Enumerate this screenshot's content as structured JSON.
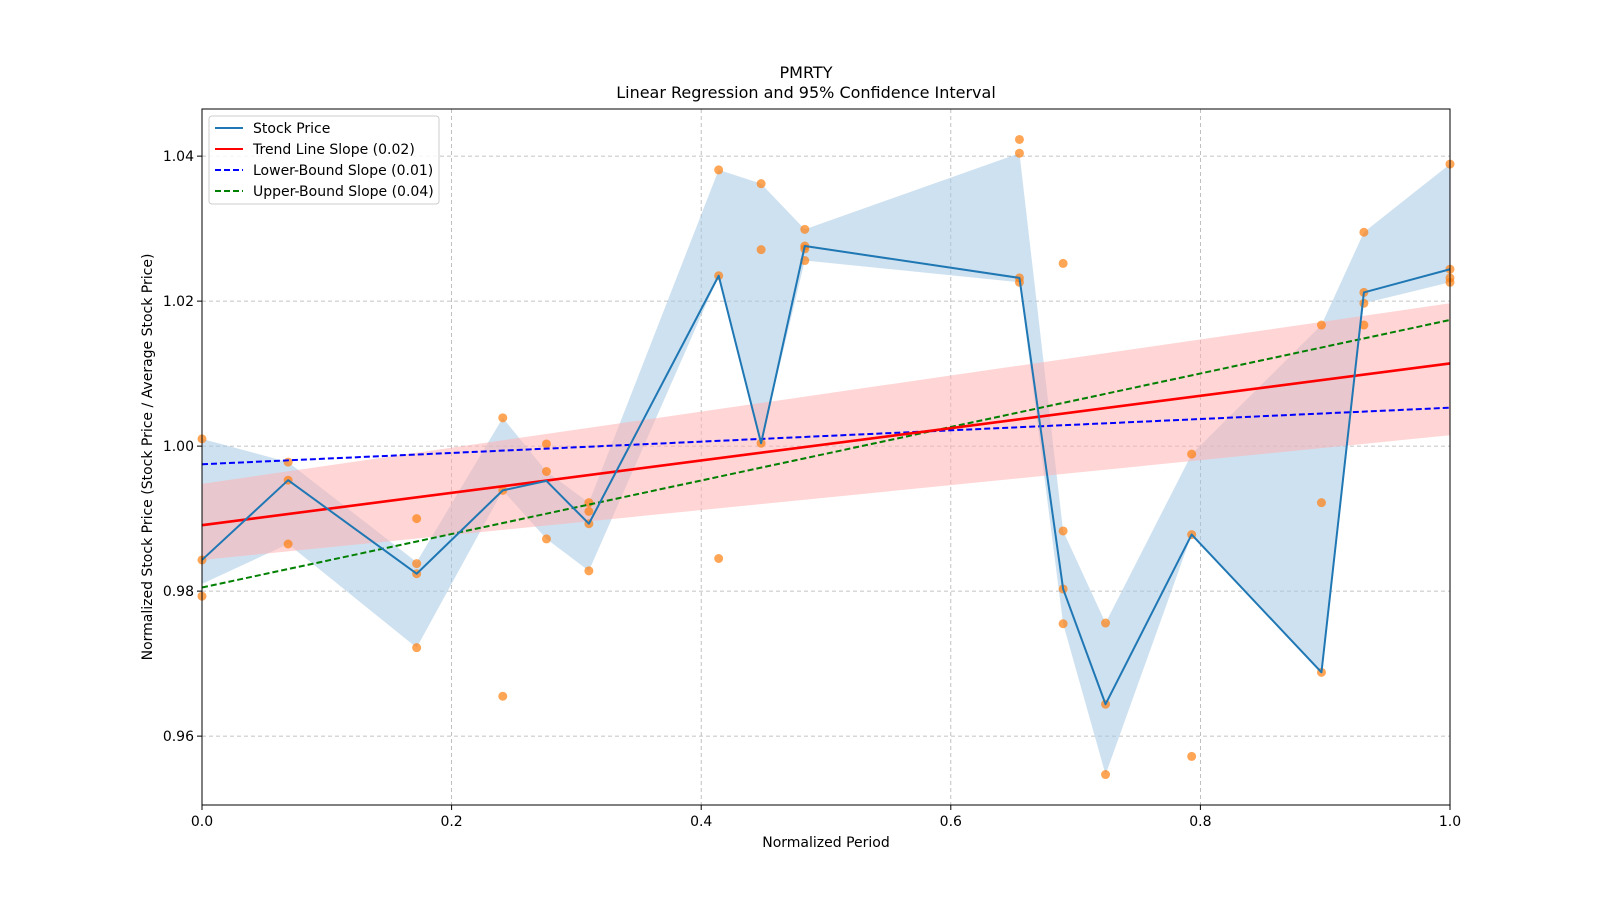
{
  "chart_data": {
    "type": "line",
    "title": "PMRTY",
    "subtitle": "Linear Regression and 95% Confidence Interval",
    "xlabel": "Normalized Period",
    "ylabel": "Normalized Stock Price (Stock Price / Average Stock Price)",
    "xlim": [
      0,
      1
    ],
    "ylim": [
      0.9505,
      1.0465
    ],
    "xticks": [
      0,
      0.2,
      0.4,
      0.6,
      0.8,
      1.0
    ],
    "xtick_labels": [
      "0.0",
      "0.2",
      "0.4",
      "0.6",
      "0.8",
      "1.0"
    ],
    "yticks": [
      0.96,
      0.98,
      1.0,
      1.02,
      1.04
    ],
    "ytick_labels": [
      "0.96",
      "0.98",
      "1.00",
      "1.02",
      "1.04"
    ],
    "grid": true,
    "legend_position": "top-left",
    "colors": {
      "stock": "#1f77b4",
      "stock_band": "#a6c9e3",
      "trend": "#ff0000",
      "trend_band": "#ffb3b3",
      "lower": "#0000ff",
      "upper": "#008000",
      "points": "#ff7f0e"
    },
    "stock_price": {
      "name": "Stock Price",
      "x": [
        0.0,
        0.069,
        0.172,
        0.241,
        0.276,
        0.31,
        0.414,
        0.448,
        0.483,
        0.655,
        0.69,
        0.724,
        0.793,
        0.897,
        0.931,
        1.0
      ],
      "y": [
        0.9843,
        0.9953,
        0.9824,
        0.9939,
        0.9952,
        0.9893,
        1.0235,
        1.0004,
        1.0276,
        1.0232,
        0.9803,
        0.9644,
        0.9878,
        0.9688,
        1.0212,
        1.0244
      ],
      "band_lower": [
        0.981,
        0.9865,
        0.9722,
        0.9939,
        0.9872,
        0.9828,
        1.0235,
        1.0004,
        1.0256,
        1.0226,
        0.9755,
        0.9547,
        0.9878,
        0.9688,
        1.0197,
        1.0226
      ],
      "band_upper": [
        1.001,
        0.9978,
        0.984,
        1.0039,
        0.9965,
        0.9922,
        1.0381,
        1.0362,
        1.0299,
        1.0404,
        0.9883,
        0.9756,
        0.9989,
        1.0167,
        1.0295,
        1.0389
      ]
    },
    "trend_line": {
      "name": "Trend Line Slope (0.02)",
      "slope": 0.0223,
      "intercept": 0.9891,
      "band_lower": [
        0.9843,
        1.0015
      ],
      "band_upper": [
        0.9948,
        1.0197
      ]
    },
    "lower_bound": {
      "name": "Lower-Bound Slope (0.01)",
      "slope": 0.0078,
      "intercept": 0.9975
    },
    "upper_bound": {
      "name": "Upper-Bound Slope (0.04)",
      "slope": 0.0369,
      "intercept": 0.9805
    },
    "scatter": {
      "x": [
        0,
        0,
        0,
        0.069,
        0.069,
        0.069,
        0.172,
        0.172,
        0.172,
        0.172,
        0.241,
        0.241,
        0.241,
        0.276,
        0.276,
        0.276,
        0.31,
        0.31,
        0.31,
        0.31,
        0.414,
        0.414,
        0.414,
        0.448,
        0.448,
        0.448,
        0.483,
        0.483,
        0.483,
        0.483,
        0.655,
        0.655,
        0.655,
        0.655,
        0.69,
        0.69,
        0.69,
        0.69,
        0.724,
        0.724,
        0.724,
        0.793,
        0.793,
        0.793,
        0.897,
        0.897,
        0.897,
        0.931,
        0.931,
        0.931,
        0.931,
        1.0,
        1.0,
        1.0,
        1.0
      ],
      "y": [
        1.001,
        0.9843,
        0.9793,
        0.9978,
        0.9953,
        0.9865,
        0.99,
        0.9838,
        0.9824,
        0.9722,
        1.0039,
        0.9939,
        0.9655,
        1.0003,
        0.9965,
        0.9872,
        0.9922,
        0.991,
        0.9893,
        0.9828,
        1.0381,
        1.0235,
        0.9845,
        1.0362,
        1.0271,
        1.0004,
        1.0299,
        1.0276,
        1.0272,
        1.0256,
        1.0423,
        1.0404,
        1.0232,
        1.0226,
        1.0252,
        0.9883,
        0.9803,
        0.9755,
        0.9756,
        0.9644,
        0.9547,
        0.9989,
        0.9878,
        0.9572,
        1.0167,
        0.9922,
        0.9688,
        1.0295,
        1.0212,
        1.0197,
        1.0167,
        1.0389,
        1.0244,
        1.0232,
        1.0226
      ]
    }
  }
}
